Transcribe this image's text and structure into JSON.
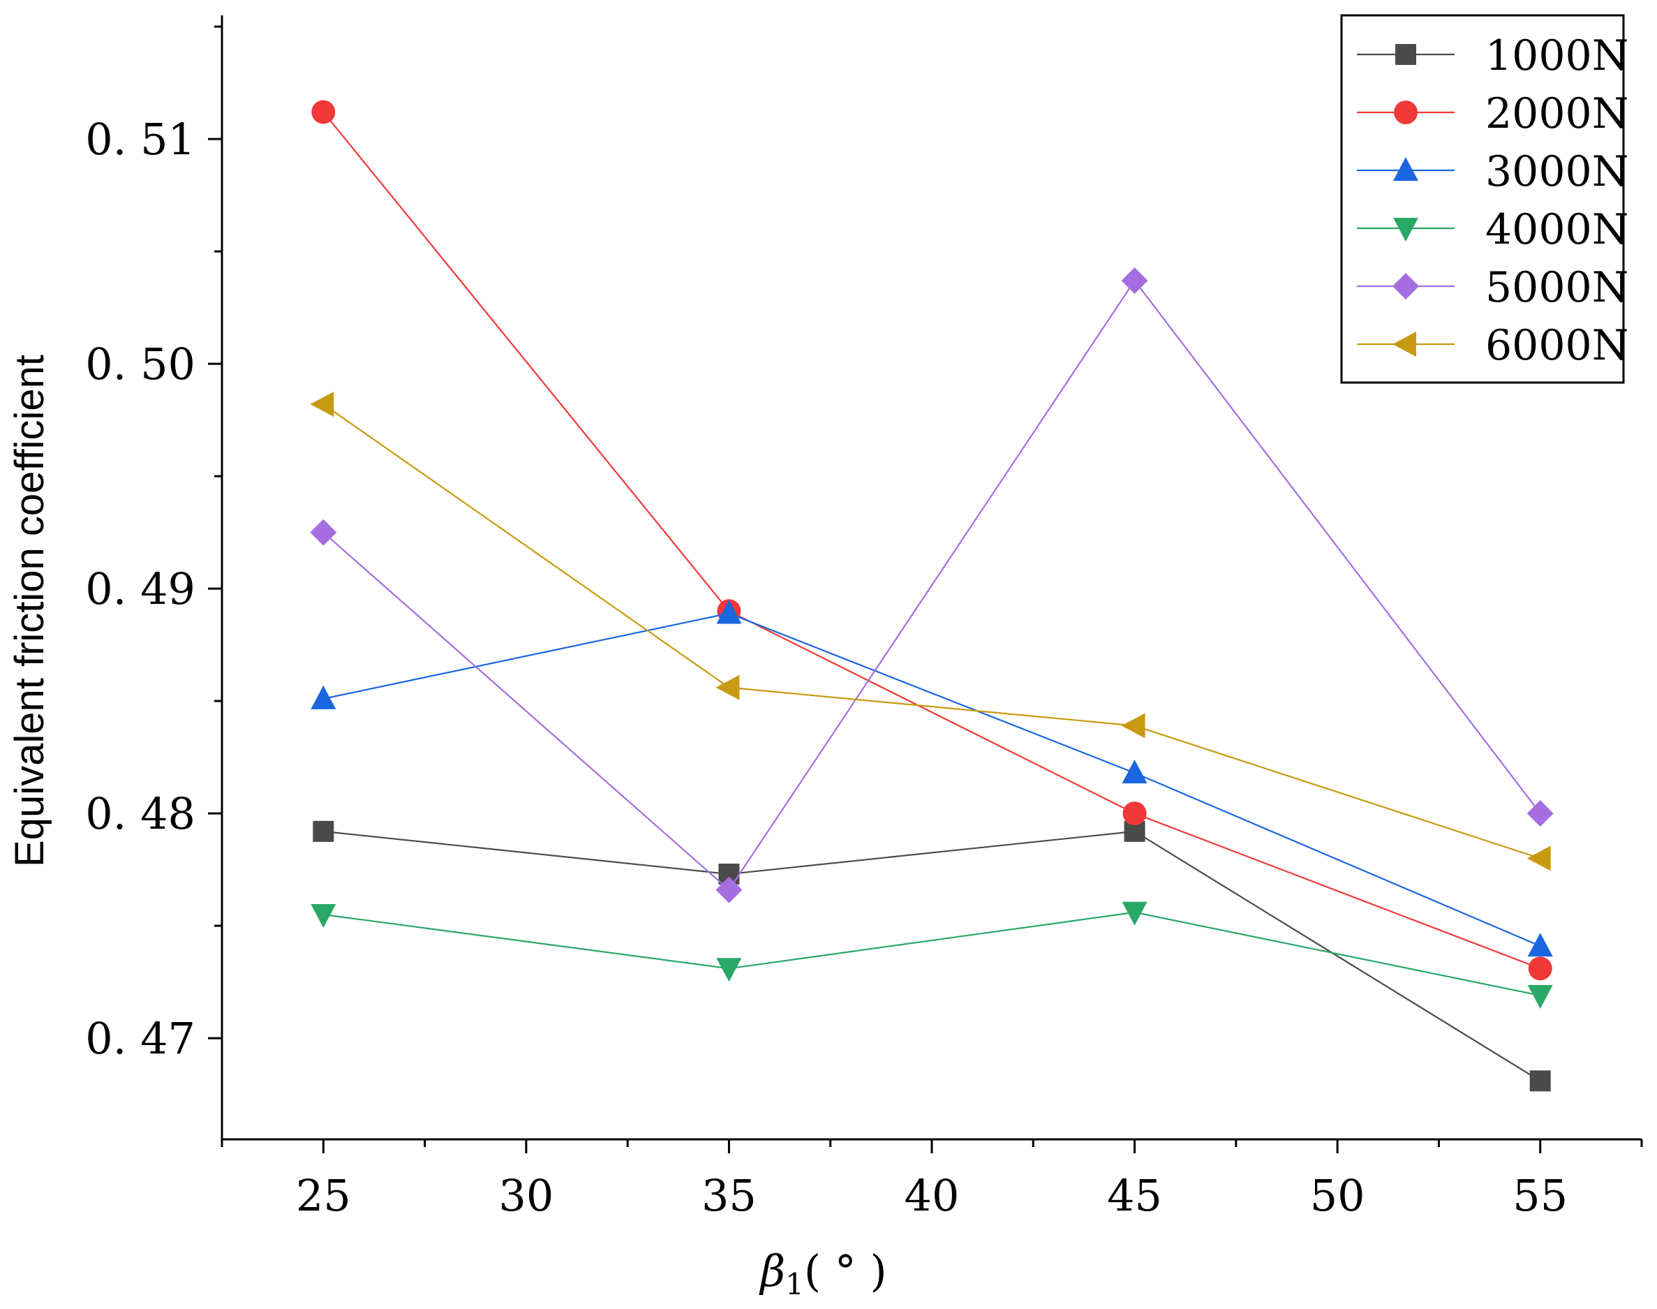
{
  "chart_data": {
    "type": "line",
    "title": "",
    "xlabel_symbol": "β",
    "xlabel_subscript": "1",
    "xlabel_unit": "( ° )",
    "ylabel": "Equivalent friction coefficient",
    "x": [
      25,
      35,
      45,
      55
    ],
    "xticks": [
      25,
      30,
      35,
      40,
      45,
      50,
      55
    ],
    "xtick_labels": [
      "25",
      "30",
      "35",
      "40",
      "45",
      "50",
      "55"
    ],
    "xlim": [
      22.5,
      57.5
    ],
    "yticks": [
      0.47,
      0.48,
      0.49,
      0.5,
      0.51
    ],
    "ytick_labels": [
      "0. 47",
      "0. 48",
      "0. 49",
      "0. 50",
      "0. 51"
    ],
    "ylim": [
      0.4655,
      0.5155
    ],
    "legend_position": "top-right",
    "series": [
      {
        "name": "1000N",
        "values": [
          0.4792,
          0.4773,
          0.4792,
          0.4681
        ],
        "color": "#4a4a4a",
        "marker": "square"
      },
      {
        "name": "2000N",
        "values": [
          0.5112,
          0.489,
          0.48,
          0.4731
        ],
        "color": "#f03838",
        "marker": "circle"
      },
      {
        "name": "3000N",
        "values": [
          0.4851,
          0.4889,
          0.4818,
          0.4741
        ],
        "color": "#1a66e0",
        "marker": "triangle-up"
      },
      {
        "name": "4000N",
        "values": [
          0.4755,
          0.4731,
          0.4756,
          0.4719
        ],
        "color": "#2aa866",
        "marker": "triangle-down"
      },
      {
        "name": "5000N",
        "values": [
          0.4925,
          0.4766,
          0.5037,
          0.48
        ],
        "color": "#a56ee0",
        "marker": "diamond"
      },
      {
        "name": "6000N",
        "values": [
          0.4982,
          0.4856,
          0.4839,
          0.478
        ],
        "color": "#c89a10",
        "marker": "triangle-left"
      }
    ]
  }
}
